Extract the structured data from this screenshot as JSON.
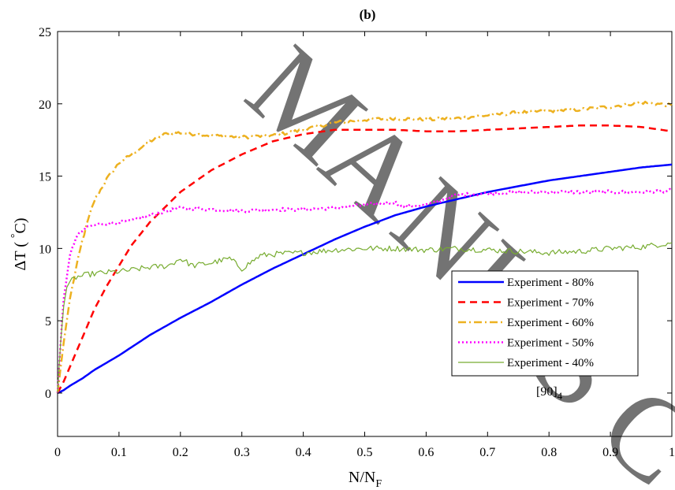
{
  "chart_data": {
    "type": "line",
    "title": "(b)",
    "xlabel": "N/N",
    "xlabel_sub": "F",
    "ylabel": "ΔT ( C)",
    "ylabel_sup": "°",
    "xlim": [
      0,
      1
    ],
    "ylim": [
      -3,
      25
    ],
    "xticks": [
      0,
      0.1,
      0.2,
      0.3,
      0.4,
      0.5,
      0.6,
      0.7,
      0.8,
      0.9,
      1
    ],
    "xtick_labels": [
      "0",
      "0.1",
      "0.2",
      "0.3",
      "0.4",
      "0.5",
      "0.6",
      "0.7",
      "0.8",
      "0.9",
      "1"
    ],
    "yticks": [
      0,
      5,
      10,
      15,
      20,
      25
    ],
    "ytick_labels": [
      "0",
      "5",
      "10",
      "15",
      "20",
      "25"
    ],
    "grid": false,
    "legend_position": "right",
    "annotation": "[90]",
    "annotation_sub": "4",
    "watermark": "MANUSCRIPT",
    "series": [
      {
        "name": "Experiment - 80%",
        "color": "#0000ff",
        "style": "solid",
        "width": 2.5,
        "noise": 0,
        "x": [
          0,
          0.01,
          0.02,
          0.04,
          0.06,
          0.08,
          0.1,
          0.15,
          0.2,
          0.25,
          0.3,
          0.35,
          0.4,
          0.45,
          0.5,
          0.55,
          0.6,
          0.65,
          0.7,
          0.75,
          0.8,
          0.85,
          0.9,
          0.95,
          1.0
        ],
        "y": [
          0,
          0.2,
          0.5,
          1.0,
          1.6,
          2.1,
          2.6,
          4.0,
          5.2,
          6.3,
          7.5,
          8.6,
          9.6,
          10.6,
          11.5,
          12.3,
          12.9,
          13.4,
          13.9,
          14.3,
          14.7,
          15.0,
          15.3,
          15.6,
          15.8
        ]
      },
      {
        "name": "Experiment - 70%",
        "color": "#ff0000",
        "style": "dashed",
        "width": 2.5,
        "noise": 0,
        "x": [
          0,
          0.01,
          0.02,
          0.04,
          0.06,
          0.08,
          0.1,
          0.12,
          0.15,
          0.2,
          0.25,
          0.3,
          0.35,
          0.4,
          0.45,
          0.5,
          0.55,
          0.6,
          0.65,
          0.7,
          0.75,
          0.8,
          0.85,
          0.9,
          0.95,
          1.0
        ],
        "y": [
          0,
          0.8,
          1.8,
          3.8,
          5.8,
          7.4,
          8.8,
          10.2,
          11.8,
          13.9,
          15.4,
          16.5,
          17.4,
          17.9,
          18.2,
          18.2,
          18.2,
          18.1,
          18.1,
          18.2,
          18.3,
          18.4,
          18.5,
          18.5,
          18.4,
          18.1
        ]
      },
      {
        "name": "Experiment - 60%",
        "color": "#edb120",
        "style": "dashdot",
        "width": 2.5,
        "noise": 0.12,
        "x": [
          0,
          0.01,
          0.02,
          0.03,
          0.04,
          0.05,
          0.06,
          0.08,
          0.1,
          0.12,
          0.15,
          0.18,
          0.2,
          0.25,
          0.3,
          0.35,
          0.4,
          0.45,
          0.5,
          0.55,
          0.6,
          0.65,
          0.7,
          0.75,
          0.8,
          0.85,
          0.9,
          0.95,
          1.0
        ],
        "y": [
          0,
          3.5,
          6.5,
          8.6,
          10.5,
          12.0,
          13.3,
          14.8,
          15.9,
          16.5,
          17.4,
          18.0,
          18.0,
          17.8,
          17.7,
          17.8,
          18.2,
          18.7,
          18.9,
          19.0,
          18.9,
          19.0,
          19.2,
          19.4,
          19.5,
          19.6,
          19.8,
          20.1,
          19.9
        ]
      },
      {
        "name": "Experiment - 50%",
        "color": "#ff00ff",
        "style": "dotted",
        "width": 2.5,
        "noise": 0.12,
        "x": [
          0,
          0.005,
          0.01,
          0.02,
          0.03,
          0.04,
          0.05,
          0.07,
          0.1,
          0.12,
          0.15,
          0.18,
          0.2,
          0.25,
          0.3,
          0.35,
          0.4,
          0.45,
          0.5,
          0.55,
          0.56,
          0.6,
          0.63,
          0.65,
          0.7,
          0.75,
          0.8,
          0.85,
          0.9,
          0.95,
          1.0
        ],
        "y": [
          0,
          3.5,
          6.5,
          9.5,
          10.8,
          11.2,
          11.5,
          11.7,
          11.8,
          11.9,
          12.3,
          12.6,
          12.8,
          12.7,
          12.6,
          12.7,
          12.7,
          12.8,
          13.0,
          13.2,
          12.9,
          13.0,
          13.4,
          13.7,
          13.8,
          13.9,
          13.9,
          13.9,
          13.9,
          13.9,
          14.0
        ]
      },
      {
        "name": "Experiment - 40%",
        "color": "#77ac30",
        "style": "solid",
        "width": 1.2,
        "noise": 0.2,
        "x": [
          0,
          0.005,
          0.01,
          0.015,
          0.02,
          0.03,
          0.05,
          0.07,
          0.1,
          0.12,
          0.15,
          0.18,
          0.2,
          0.22,
          0.25,
          0.28,
          0.3,
          0.33,
          0.35,
          0.4,
          0.45,
          0.5,
          0.55,
          0.6,
          0.65,
          0.7,
          0.75,
          0.8,
          0.85,
          0.9,
          0.95,
          1.0
        ],
        "y": [
          0,
          3.5,
          6.0,
          7.3,
          7.7,
          8.0,
          8.2,
          8.3,
          8.4,
          8.5,
          8.7,
          8.8,
          9.3,
          8.8,
          9.0,
          9.3,
          8.6,
          9.5,
          9.6,
          9.7,
          9.9,
          10.0,
          10.0,
          9.9,
          10.0,
          9.9,
          9.8,
          9.7,
          9.8,
          10.0,
          10.1,
          10.4
        ]
      }
    ]
  }
}
